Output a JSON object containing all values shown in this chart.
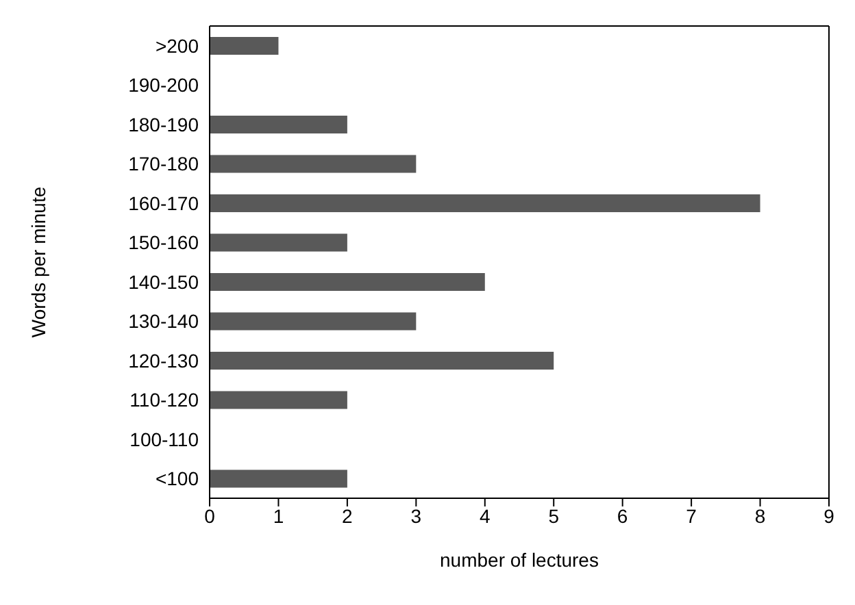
{
  "chart_data": {
    "type": "bar",
    "orientation": "horizontal",
    "xlabel": "number of lectures",
    "ylabel": "Words per minute",
    "categories": [
      ">200",
      "190-200",
      "180-190",
      "170-180",
      "160-170",
      "150-160",
      "140-150",
      "130-140",
      "120-130",
      "110-120",
      "100-110",
      "<100"
    ],
    "values": [
      1,
      0,
      2,
      3,
      8,
      2,
      4,
      3,
      5,
      2,
      0,
      2
    ],
    "color": "#595959",
    "xlim": [
      0,
      9
    ],
    "xticks": [
      0,
      1,
      2,
      3,
      4,
      5,
      6,
      7,
      8,
      9
    ],
    "grid": false,
    "legend": false
  }
}
